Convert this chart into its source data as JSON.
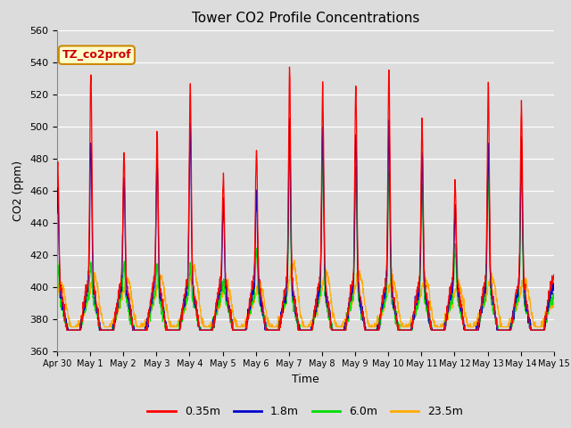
{
  "title": "Tower CO2 Profile Concentrations",
  "xlabel": "Time",
  "ylabel": "CO2 (ppm)",
  "ylim": [
    360,
    560
  ],
  "yticks": [
    360,
    380,
    400,
    420,
    440,
    460,
    480,
    500,
    520,
    540,
    560
  ],
  "bg_color": "#dcdcdc",
  "colors": {
    "0.35m": "#ff0000",
    "1.8m": "#0000cc",
    "6.0m": "#00dd00",
    "23.5m": "#ffaa00"
  },
  "legend_label": "TZ_co2prof",
  "legend_bg": "#ffffcc",
  "legend_border": "#cc8800",
  "n_days": 15,
  "seed": 42
}
